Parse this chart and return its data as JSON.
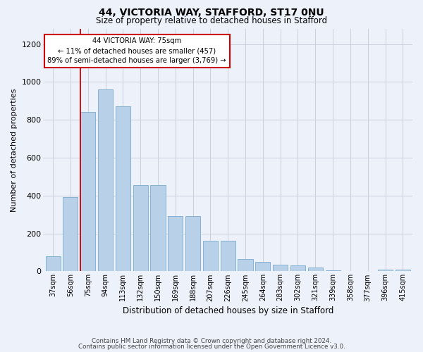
{
  "title": "44, VICTORIA WAY, STAFFORD, ST17 0NU",
  "subtitle": "Size of property relative to detached houses in Stafford",
  "xlabel": "Distribution of detached houses by size in Stafford",
  "ylabel": "Number of detached properties",
  "categories": [
    "37sqm",
    "56sqm",
    "75sqm",
    "94sqm",
    "113sqm",
    "132sqm",
    "150sqm",
    "169sqm",
    "188sqm",
    "207sqm",
    "226sqm",
    "245sqm",
    "264sqm",
    "283sqm",
    "302sqm",
    "321sqm",
    "339sqm",
    "358sqm",
    "377sqm",
    "396sqm",
    "415sqm"
  ],
  "values": [
    80,
    390,
    840,
    960,
    870,
    455,
    455,
    290,
    290,
    160,
    160,
    65,
    50,
    35,
    30,
    20,
    5,
    0,
    0,
    10,
    10
  ],
  "bar_color": "#b8d0e8",
  "bar_edge_color": "#7aaace",
  "highlight_index": 2,
  "highlight_line_color": "#cc0000",
  "annotation_line1": "44 VICTORIA WAY: 75sqm",
  "annotation_line2": "← 11% of detached houses are smaller (457)",
  "annotation_line3": "89% of semi-detached houses are larger (3,769) →",
  "annotation_box_facecolor": "#ffffff",
  "annotation_box_edgecolor": "#cc0000",
  "ylim": [
    0,
    1280
  ],
  "yticks": [
    0,
    200,
    400,
    600,
    800,
    1000,
    1200
  ],
  "footer_line1": "Contains HM Land Registry data © Crown copyright and database right 2024.",
  "footer_line2": "Contains public sector information licensed under the Open Government Licence v3.0.",
  "bg_color": "#edf1f9",
  "grid_color": "#c8d0de"
}
